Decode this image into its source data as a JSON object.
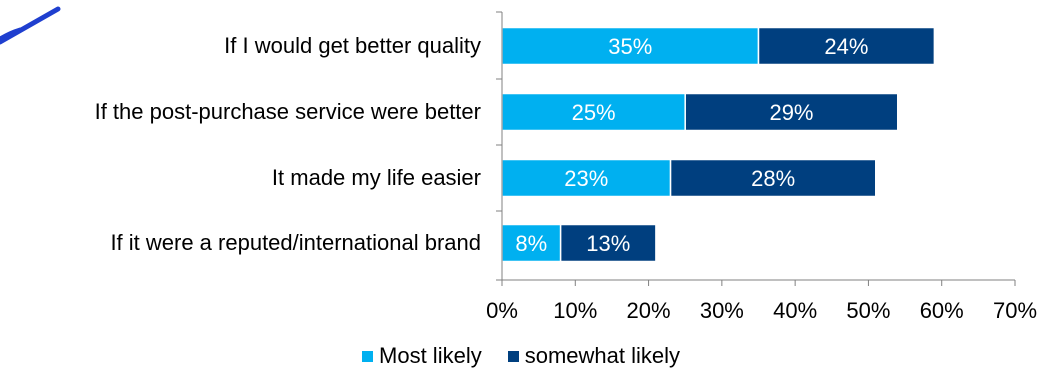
{
  "chart_data": {
    "type": "bar",
    "orientation": "horizontal",
    "stacked": true,
    "categories": [
      "If I would get better quality",
      "If the post-purchase service were better",
      "It made my life easier",
      "If it were a reputed/international brand"
    ],
    "series": [
      {
        "name": "Most likely",
        "color": "#00b0f0",
        "values": [
          35,
          25,
          23,
          8
        ]
      },
      {
        "name": "somewhat likely",
        "color": "#003f7f",
        "values": [
          24,
          29,
          28,
          13
        ]
      }
    ],
    "data_labels": [
      [
        "35%",
        "25%",
        "23%",
        "8%"
      ],
      [
        "24%",
        "29%",
        "28%",
        "13%"
      ]
    ],
    "xlim": [
      0,
      70
    ],
    "xticks": [
      0,
      10,
      20,
      30,
      40,
      50,
      60,
      70
    ],
    "xtick_labels": [
      "0%",
      "10%",
      "20%",
      "30%",
      "40%",
      "50%",
      "60%",
      "70%"
    ],
    "grid": false,
    "legend_position": "bottom"
  },
  "decorations": {
    "accent_color": "#1f3fcf"
  }
}
